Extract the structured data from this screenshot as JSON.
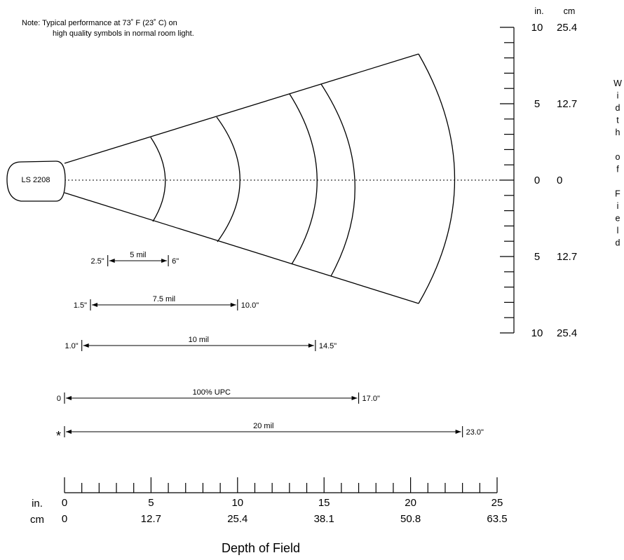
{
  "note": {
    "line1": "Note:  Typical performance at 73˚ F (23˚ C) on",
    "line2": "high quality symbols in normal room light."
  },
  "scanner": {
    "label": "LS 2208"
  },
  "width_axis": {
    "title_letters": [
      "W",
      "i",
      "d",
      "t",
      "h",
      "",
      "o",
      "f",
      "",
      "F",
      "i",
      "e",
      "l",
      "d"
    ],
    "unit_in": "in.",
    "unit_cm": "cm",
    "ticks": [
      {
        "inches": "10",
        "cm": "25.4"
      },
      {
        "inches": "5",
        "cm": "12.7"
      },
      {
        "inches": "0",
        "cm": "0"
      },
      {
        "inches": "5",
        "cm": "12.7"
      },
      {
        "inches": "10",
        "cm": "25.4"
      }
    ]
  },
  "depth_axis": {
    "title": "Depth of Field",
    "unit_in": "in.",
    "unit_cm": "cm",
    "labels_in": [
      "0",
      "5",
      "10",
      "15",
      "20",
      "25"
    ],
    "labels_cm": [
      "0",
      "12.7",
      "25.4",
      "38.1",
      "50.8",
      "63.5"
    ],
    "max_inches": 25,
    "minor_per_inch": 1
  },
  "chart_data": {
    "type": "range",
    "title": "Depth of Field",
    "units": "inches",
    "ranges": [
      {
        "symbol": "5 mil",
        "near_label": "2.5\"",
        "far_label": "6\"",
        "near": 2.5,
        "far": 6
      },
      {
        "symbol": "7.5 mil",
        "near_label": "1.5\"",
        "far_label": "10.0\"",
        "near": 1.5,
        "far": 10.0
      },
      {
        "symbol": "10 mil",
        "near_label": "1.0\"",
        "far_label": "14.5\"",
        "near": 1.0,
        "far": 14.5
      },
      {
        "symbol": "100% UPC",
        "near_label": "0",
        "far_label": "17.0\"",
        "near": 0,
        "far": 17.0
      },
      {
        "symbol": "20 mil",
        "near_label": "*",
        "far_label": "23.0\"",
        "near": 0,
        "far": 23.0
      }
    ]
  }
}
